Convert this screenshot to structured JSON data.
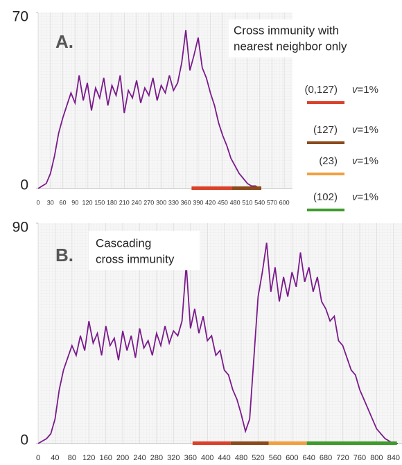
{
  "chart_data": [
    {
      "type": "line",
      "panel": "A.",
      "annotation": [
        "Cross immunity with",
        "nearest neighbor only"
      ],
      "xlim": [
        0,
        620
      ],
      "ylim": [
        0,
        70
      ],
      "xticks": [
        0,
        30,
        60,
        90,
        120,
        150,
        180,
        210,
        240,
        270,
        300,
        330,
        360,
        390,
        420,
        450,
        480,
        510,
        540,
        570,
        600
      ],
      "yticks": [
        0,
        70
      ],
      "series": [
        {
          "color": "#7a1a8c",
          "x": [
            0,
            10,
            20,
            30,
            40,
            50,
            60,
            70,
            80,
            90,
            100,
            110,
            120,
            130,
            140,
            150,
            160,
            170,
            180,
            190,
            200,
            210,
            220,
            230,
            240,
            250,
            260,
            270,
            280,
            290,
            300,
            310,
            320,
            330,
            340,
            350,
            360,
            370,
            380,
            390,
            400,
            410,
            420,
            430,
            440,
            450,
            460,
            470,
            480,
            490,
            500,
            510,
            520,
            530,
            540
          ],
          "values": [
            0,
            1,
            2,
            6,
            13,
            22,
            28,
            33,
            38,
            34,
            45,
            35,
            42,
            31,
            40,
            36,
            44,
            33,
            41,
            37,
            45,
            30,
            39,
            36,
            43,
            34,
            40,
            37,
            44,
            35,
            41,
            38,
            45,
            39,
            42,
            50,
            63,
            47,
            53,
            60,
            48,
            44,
            38,
            33,
            26,
            21,
            17,
            12,
            9,
            6,
            4,
            2,
            1,
            1,
            0
          ]
        }
      ],
      "spans": [
        {
          "color": "#d9412b",
          "x": [
            374,
            473
          ]
        },
        {
          "color": "#8b4a1c",
          "x": [
            473,
            544
          ]
        }
      ]
    },
    {
      "type": "line",
      "panel": "B.",
      "annotation": [
        "Cascading",
        "cross immunity"
      ],
      "xlim": [
        0,
        860
      ],
      "ylim": [
        0,
        90
      ],
      "xticks": [
        0,
        40,
        80,
        120,
        160,
        200,
        240,
        280,
        320,
        360,
        400,
        440,
        480,
        520,
        560,
        600,
        640,
        680,
        720,
        760,
        800,
        840
      ],
      "yticks": [
        0,
        90
      ],
      "series": [
        {
          "color": "#7a1a8c",
          "x": [
            0,
            10,
            20,
            30,
            40,
            50,
            60,
            70,
            80,
            90,
            100,
            110,
            120,
            130,
            140,
            150,
            160,
            170,
            180,
            190,
            200,
            210,
            220,
            230,
            240,
            250,
            260,
            270,
            280,
            290,
            300,
            310,
            320,
            330,
            340,
            350,
            360,
            370,
            380,
            390,
            400,
            410,
            420,
            430,
            440,
            450,
            460,
            470,
            480,
            490,
            500,
            510,
            520,
            530,
            540,
            550,
            560,
            570,
            580,
            590,
            600,
            610,
            620,
            630,
            640,
            650,
            660,
            670,
            680,
            690,
            700,
            710,
            720,
            730,
            740,
            750,
            760,
            770,
            780,
            790,
            800,
            810,
            820,
            830,
            840,
            850
          ],
          "values": [
            0,
            1,
            2,
            4,
            10,
            22,
            30,
            35,
            40,
            36,
            44,
            38,
            50,
            41,
            45,
            36,
            48,
            40,
            43,
            34,
            46,
            38,
            44,
            35,
            47,
            39,
            42,
            36,
            45,
            40,
            48,
            41,
            46,
            44,
            50,
            73,
            47,
            55,
            45,
            52,
            42,
            44,
            36,
            38,
            30,
            28,
            22,
            18,
            12,
            5,
            10,
            35,
            60,
            70,
            82,
            62,
            72,
            58,
            68,
            60,
            70,
            64,
            78,
            66,
            72,
            62,
            68,
            58,
            55,
            50,
            52,
            42,
            40,
            35,
            30,
            28,
            22,
            18,
            14,
            10,
            6,
            4,
            2,
            1,
            0,
            0
          ]
        }
      ],
      "spans": [
        {
          "color": "#d9412b",
          "x": [
            365,
            455
          ]
        },
        {
          "color": "#8b4a1c",
          "x": [
            455,
            545
          ]
        },
        {
          "color": "#f0a040",
          "x": [
            545,
            635
          ]
        },
        {
          "color": "#3f9a2e",
          "x": [
            635,
            848
          ]
        }
      ]
    }
  ],
  "legend": [
    {
      "label": "(0,127)",
      "variable": "v",
      "rate": "=1%",
      "color": "#d9412b"
    },
    {
      "label": "(127)",
      "variable": "v",
      "rate": "=1%",
      "color": "#8b4a1c"
    },
    {
      "label": "(23)",
      "variable": "v",
      "rate": "=1%",
      "color": "#f0a040"
    },
    {
      "label": "(102)",
      "variable": "v",
      "rate": "=1%",
      "color": "#3f9a2e"
    }
  ]
}
